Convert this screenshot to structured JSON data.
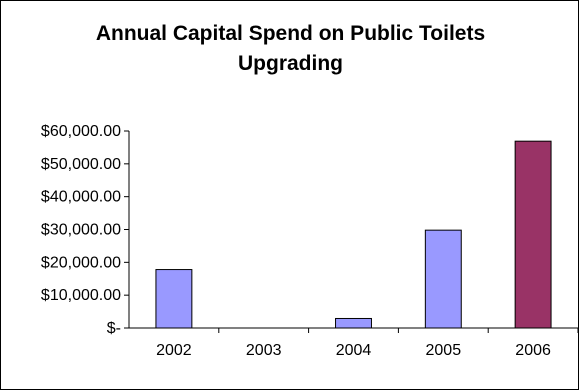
{
  "chart_data": {
    "type": "bar",
    "title_line1": "Annual Capital Spend on Public Toilets",
    "title_line2": "Upgrading",
    "categories": [
      "2002",
      "2003",
      "2004",
      "2005",
      "2006"
    ],
    "values": [
      17800,
      0,
      2900,
      29800,
      56900
    ],
    "bar_colors": [
      "#9999ff",
      "#9999ff",
      "#9999ff",
      "#9999ff",
      "#993366"
    ],
    "ylim": [
      0,
      60000
    ],
    "yticks": [
      0,
      10000,
      20000,
      30000,
      40000,
      50000,
      60000
    ],
    "ytick_labels": [
      "$-",
      "$10,000.00",
      "$20,000.00",
      "$30,000.00",
      "$40,000.00",
      "$50,000.00",
      "$60,000.00"
    ],
    "grid": false,
    "legend": "none"
  }
}
